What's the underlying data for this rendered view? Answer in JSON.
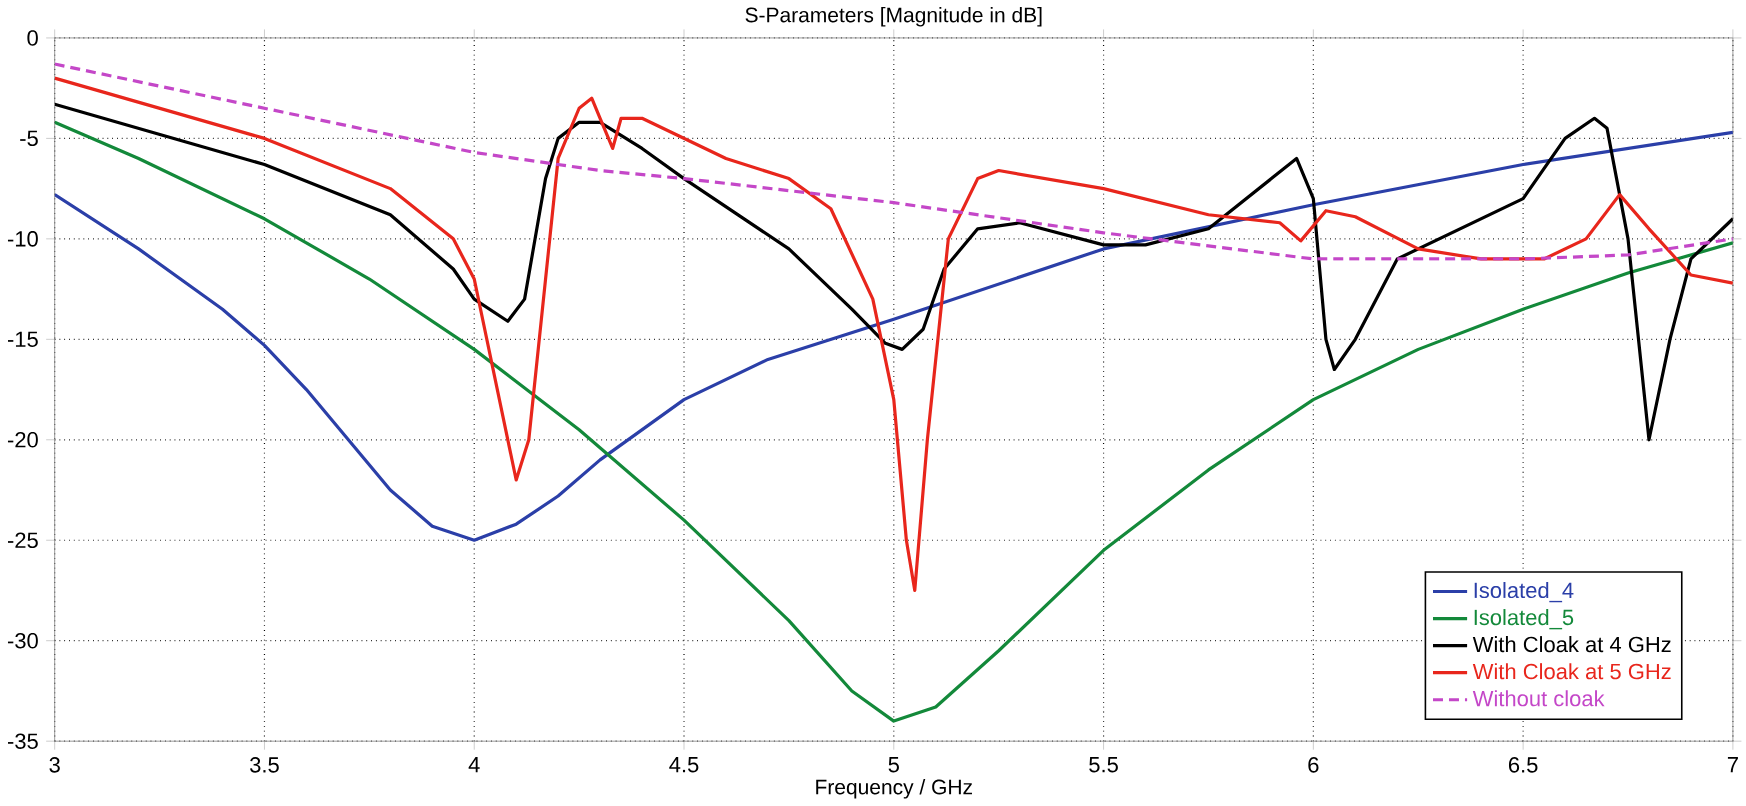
{
  "chart_data": {
    "type": "line",
    "title": "S-Parameters [Magnitude in dB]",
    "xlabel": "Frequency / GHz",
    "xlim": [
      3,
      7
    ],
    "ylim": [
      -35,
      0
    ],
    "xticks": [
      3,
      3.5,
      4,
      4.5,
      5,
      5.5,
      6,
      6.5,
      7
    ],
    "yticks": [
      0,
      -5,
      -10,
      -15,
      -20,
      -25,
      -30,
      -35
    ],
    "grid": true,
    "legend": "bottom right",
    "marker": "none",
    "series": [
      {
        "name": "Isolated_4",
        "color": "#2b3fa8",
        "x": [
          3,
          3.2,
          3.4,
          3.5,
          3.6,
          3.7,
          3.8,
          3.9,
          4.0,
          4.1,
          4.2,
          4.3,
          4.5,
          4.7,
          5.0,
          5.5,
          6.0,
          6.5,
          7
        ],
        "values": [
          -7.8,
          -10.5,
          -13.5,
          -15.3,
          -17.5,
          -20,
          -22.5,
          -24.3,
          -25,
          -24.2,
          -22.8,
          -21,
          -18,
          -16,
          -14,
          -10.5,
          -8.3,
          -6.3,
          -4.7
        ]
      },
      {
        "name": "Isolated_5",
        "color": "#13893a",
        "x": [
          3,
          3.2,
          3.5,
          3.75,
          4,
          4.25,
          4.5,
          4.75,
          4.9,
          5.0,
          5.1,
          5.25,
          5.5,
          5.75,
          6.0,
          6.25,
          6.5,
          6.75,
          7
        ],
        "values": [
          -4.2,
          -6,
          -9,
          -12,
          -15.5,
          -19.5,
          -24,
          -29,
          -32.5,
          -34,
          -33.3,
          -30.5,
          -25.5,
          -21.5,
          -18,
          -15.5,
          -13.5,
          -11.7,
          -10.2
        ]
      },
      {
        "name": "With Cloak at 4 GHz",
        "color": "#000000",
        "x": [
          3,
          3.5,
          3.8,
          3.95,
          4.0,
          4.08,
          4.12,
          4.17,
          4.2,
          4.25,
          4.3,
          4.4,
          4.5,
          4.75,
          4.9,
          4.98,
          5.02,
          5.07,
          5.12,
          5.2,
          5.3,
          5.5,
          5.6,
          5.75,
          5.9,
          5.96,
          6.0,
          6.03,
          6.05,
          6.1,
          6.2,
          6.3,
          6.5,
          6.6,
          6.67,
          6.7,
          6.75,
          6.8,
          6.85,
          6.9,
          7
        ],
        "values": [
          -3.3,
          -6.3,
          -8.8,
          -11.5,
          -13,
          -14.1,
          -13,
          -7,
          -5,
          -4.2,
          -4.2,
          -5.5,
          -7,
          -10.5,
          -13.5,
          -15.2,
          -15.5,
          -14.5,
          -11.5,
          -9.5,
          -9.2,
          -10.3,
          -10.3,
          -9.5,
          -7,
          -6,
          -8,
          -15,
          -16.5,
          -15,
          -11,
          -10,
          -8,
          -5,
          -4,
          -4.5,
          -10,
          -20,
          -15,
          -11,
          -9
        ]
      },
      {
        "name": "With Cloak at 5 GHz",
        "color": "#e8261c",
        "x": [
          3,
          3.5,
          3.8,
          3.95,
          4.0,
          4.05,
          4.1,
          4.13,
          4.17,
          4.2,
          4.25,
          4.28,
          4.3,
          4.33,
          4.35,
          4.4,
          4.6,
          4.75,
          4.85,
          4.95,
          5.0,
          5.03,
          5.05,
          5.08,
          5.13,
          5.2,
          5.25,
          5.5,
          5.75,
          5.92,
          5.97,
          6.03,
          6.1,
          6.25,
          6.4,
          6.55,
          6.65,
          6.73,
          6.8,
          6.9,
          7
        ],
        "values": [
          -2,
          -5,
          -7.5,
          -10,
          -12,
          -17,
          -22,
          -20,
          -12,
          -6,
          -3.5,
          -3,
          -4,
          -5.5,
          -4,
          -4,
          -6,
          -7,
          -8.5,
          -13,
          -18,
          -25,
          -27.5,
          -20,
          -10,
          -7,
          -6.6,
          -7.5,
          -8.8,
          -9.2,
          -10.1,
          -8.6,
          -8.9,
          -10.5,
          -11,
          -11,
          -10,
          -7.8,
          -9.5,
          -11.8,
          -12.2
        ]
      },
      {
        "name": "Without cloak",
        "color": "#c447c8",
        "line_style": "dashed",
        "x": [
          3,
          3.5,
          4,
          4.3,
          4.5,
          5,
          5.5,
          6,
          6.5,
          6.75,
          7
        ],
        "values": [
          -1.3,
          -3.5,
          -5.7,
          -6.6,
          -7,
          -8.2,
          -9.7,
          -11,
          -11,
          -10.8,
          -10
        ]
      }
    ]
  }
}
